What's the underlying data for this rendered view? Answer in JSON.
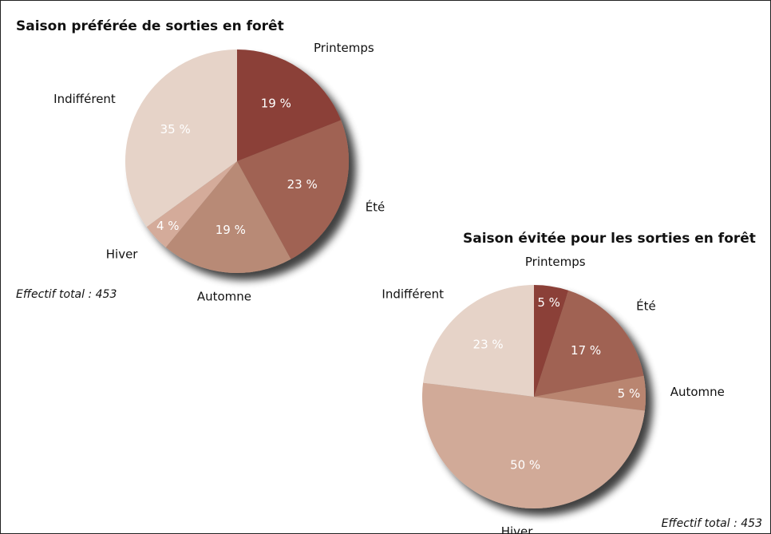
{
  "chart_data": [
    {
      "type": "pie",
      "title": "Saison préférée de sorties en forêt",
      "categories": [
        "Printemps",
        "Été",
        "Automne",
        "Hiver",
        "Indifférent"
      ],
      "values": [
        19,
        23,
        19,
        4,
        35
      ],
      "value_labels": [
        "19 %",
        "23 %",
        "19 %",
        "4 %",
        "35 %"
      ],
      "colors": [
        "#8b4038",
        "#a06252",
        "#b88a76",
        "#d4ab9a",
        "#e6d3c8"
      ],
      "annotation": "Effectif total : 453"
    },
    {
      "type": "pie",
      "title": "Saison évitée pour les sorties en forêt",
      "categories": [
        "Printemps",
        "Été",
        "Automne",
        "Hiver",
        "Indifférent"
      ],
      "values": [
        5,
        17,
        5,
        50,
        23
      ],
      "value_labels": [
        "5 %",
        "17 %",
        "5 %",
        "50 %",
        "23 %"
      ],
      "colors": [
        "#8b4038",
        "#a06252",
        "#b98570",
        "#d1aa98",
        "#e6d3c8"
      ],
      "annotation": "Effectif total : 453"
    }
  ]
}
